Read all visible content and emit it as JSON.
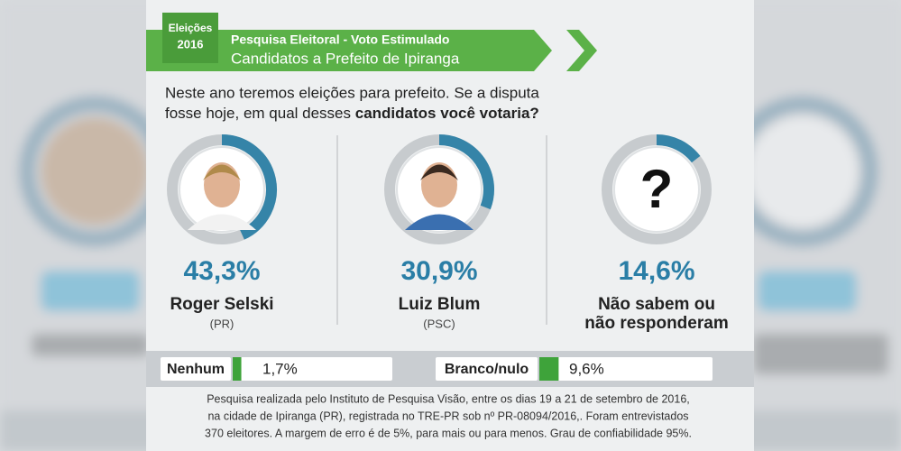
{
  "header": {
    "badge": [
      "Eleições",
      "2016"
    ],
    "title": "Pesquisa Eleitoral  - Voto Estimulado",
    "subtitle": "Candidatos a Prefeito de Ipiranga"
  },
  "question": {
    "line1": "Neste ano teremos eleições para prefeito. Se a disputa",
    "line2_plain": "fosse hoje, em qual desses ",
    "line2_bold": "candidatos você votaria?"
  },
  "candidates": [
    {
      "name": [
        "Roger Selski"
      ],
      "party": "(PR)",
      "value": 43.3,
      "value_label": "43,3%"
    },
    {
      "name": [
        "Luiz Blum"
      ],
      "party": "(PSC)",
      "value": 30.9,
      "value_label": "30,9%"
    },
    {
      "name": [
        "Não sabem ou",
        "não responderam"
      ],
      "icon": "?",
      "value": 14.6,
      "value_label": "14,6%"
    }
  ],
  "others": [
    {
      "label": "Nenhum",
      "value": 1.7,
      "value_label": "1,7%"
    },
    {
      "label": "Branco/nulo",
      "value": 9.6,
      "value_label": "9,6%"
    }
  ],
  "footnote": [
    "Pesquisa realizada pelo Instituto de Pesquisa Visão, entre os dias 19 a 21 de setembro de 2016,",
    "na cidade de Ipiranga (PR), registrada no TRE-PR sob nº PR-08094/2016,. Foram entrevistados",
    "370 eleitores. A margem de erro é de 5%, para mais ou para menos. Grau de confiabilidade 95%."
  ]
}
